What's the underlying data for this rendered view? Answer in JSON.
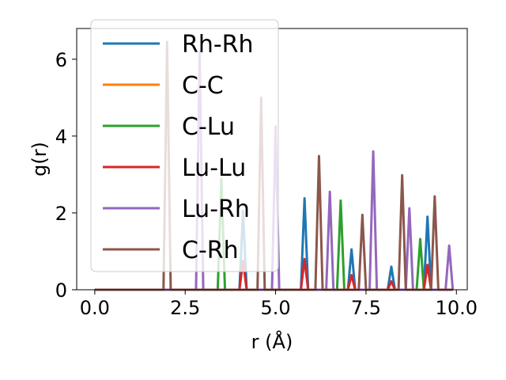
{
  "chart_data": {
    "type": "line",
    "xlabel": "r (Å)",
    "ylabel": "g(r)",
    "xlim": [
      -0.5,
      10.3
    ],
    "ylim": [
      0,
      6.8
    ],
    "xticks": [
      0.0,
      2.5,
      5.0,
      7.5,
      10.0
    ],
    "xtick_labels": [
      "0.0",
      "2.5",
      "5.0",
      "7.5",
      "10.0"
    ],
    "yticks": [
      0,
      2,
      4,
      6
    ],
    "ytick_labels": [
      "0",
      "2",
      "4",
      "6"
    ],
    "legend_position": "top-left",
    "grid": false,
    "peak_halfwidth": 0.1,
    "series": [
      {
        "name": "Rh-Rh",
        "color": "#1f77b4",
        "peaks": [
          [
            4.1,
            2.05
          ],
          [
            5.8,
            2.38
          ],
          [
            7.1,
            1.05
          ],
          [
            8.2,
            0.6
          ],
          [
            9.2,
            1.9
          ]
        ]
      },
      {
        "name": "C-C",
        "color": "#ff7f0e",
        "peaks": []
      },
      {
        "name": "C-Lu",
        "color": "#2ca02c",
        "peaks": [
          [
            3.5,
            2.88
          ],
          [
            6.8,
            2.32
          ],
          [
            9.0,
            1.32
          ]
        ]
      },
      {
        "name": "Lu-Lu",
        "color": "#d62728",
        "peaks": [
          [
            4.1,
            0.75
          ],
          [
            5.8,
            0.8
          ],
          [
            7.1,
            0.38
          ],
          [
            8.2,
            0.22
          ],
          [
            9.2,
            0.65
          ]
        ]
      },
      {
        "name": "Lu-Rh",
        "color": "#9467bd",
        "peaks": [
          [
            2.9,
            6.2
          ],
          [
            5.0,
            4.25
          ],
          [
            6.5,
            2.55
          ],
          [
            7.7,
            3.6
          ],
          [
            8.7,
            2.12
          ],
          [
            9.8,
            1.15
          ]
        ]
      },
      {
        "name": "C-Rh",
        "color": "#8c564b",
        "peaks": [
          [
            2.0,
            6.45
          ],
          [
            4.6,
            5.0
          ],
          [
            6.2,
            3.48
          ],
          [
            7.4,
            1.95
          ],
          [
            8.5,
            2.98
          ],
          [
            9.4,
            2.43
          ]
        ]
      }
    ]
  }
}
